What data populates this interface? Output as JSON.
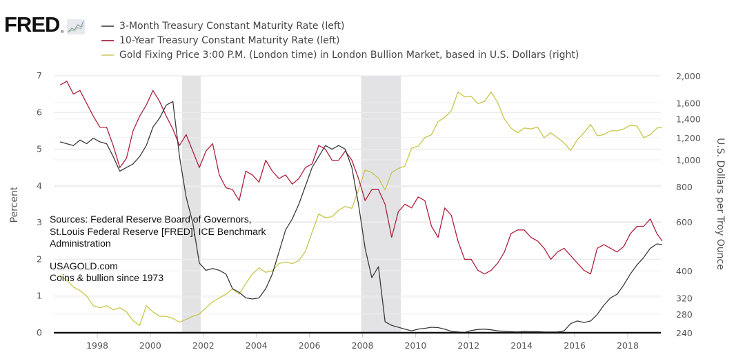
{
  "header": {
    "logo_text": "FRED",
    "logo_mark": "®",
    "logo_icon": "chart-line-icon"
  },
  "chart_data": {
    "type": "line",
    "title": "",
    "legend_position": "top-left",
    "legend": [
      {
        "name": "3-Month Treasury Constant Maturity Rate (left)",
        "color": "#444444"
      },
      {
        "name": "10-Year Treasury Constant Maturity Rate (left)",
        "color": "#b0203c"
      },
      {
        "name": "Gold Fixing Price 3:00 P.M. (London time) in London Bullion Market, based in U.S. Dollars (right)",
        "color": "#c8c44a"
      }
    ],
    "xlabel": "",
    "x_ticks": [
      "1998",
      "2000",
      "2002",
      "2004",
      "2006",
      "2008",
      "2010",
      "2012",
      "2014",
      "2016",
      "2018"
    ],
    "x_range": [
      1996.6,
      2019.3
    ],
    "y_left": {
      "label": "Percent",
      "range": [
        0,
        7
      ],
      "ticks": [
        "0",
        "1",
        "2",
        "3",
        "4",
        "5",
        "6",
        "7"
      ]
    },
    "y_right": {
      "label": "U.S. Dollars per Troy Ounce",
      "scale": "log",
      "range": [
        240,
        2000
      ],
      "ticks": [
        "240",
        "280",
        "320",
        "400",
        "600",
        "800",
        "1,000",
        "1,200",
        "1,400",
        "1,600",
        "2,000"
      ],
      "tick_values": [
        240,
        280,
        320,
        400,
        600,
        800,
        1000,
        1200,
        1400,
        1600,
        2000
      ]
    },
    "grid": true,
    "recessions": [
      [
        2001.2,
        2001.9
      ],
      [
        2007.95,
        2009.45
      ]
    ],
    "x": [
      1996.6,
      1996.85,
      1997.1,
      1997.35,
      1997.6,
      1997.85,
      1998.1,
      1998.35,
      1998.6,
      1998.85,
      1999.1,
      1999.35,
      1999.6,
      1999.85,
      2000.1,
      2000.35,
      2000.6,
      2000.85,
      2001.1,
      2001.35,
      2001.6,
      2001.85,
      2002.1,
      2002.35,
      2002.6,
      2002.85,
      2003.1,
      2003.35,
      2003.6,
      2003.85,
      2004.1,
      2004.35,
      2004.6,
      2004.85,
      2005.1,
      2005.35,
      2005.6,
      2005.85,
      2006.1,
      2006.35,
      2006.6,
      2006.85,
      2007.1,
      2007.35,
      2007.6,
      2007.85,
      2008.1,
      2008.35,
      2008.6,
      2008.85,
      2009.1,
      2009.35,
      2009.6,
      2009.85,
      2010.1,
      2010.35,
      2010.6,
      2010.85,
      2011.1,
      2011.35,
      2011.6,
      2011.85,
      2012.1,
      2012.35,
      2012.6,
      2012.85,
      2013.1,
      2013.35,
      2013.6,
      2013.85,
      2014.1,
      2014.35,
      2014.6,
      2014.85,
      2015.1,
      2015.35,
      2015.6,
      2015.85,
      2016.1,
      2016.35,
      2016.6,
      2016.85,
      2017.1,
      2017.35,
      2017.6,
      2017.85,
      2018.1,
      2018.35,
      2018.6,
      2018.85,
      2019.1,
      2019.3
    ],
    "series": [
      {
        "name": "3-Month Treasury Constant Maturity Rate (left)",
        "axis": "left",
        "values": [
          5.2,
          5.15,
          5.1,
          5.25,
          5.15,
          5.3,
          5.2,
          5.15,
          4.8,
          4.4,
          4.5,
          4.6,
          4.8,
          5.1,
          5.6,
          5.85,
          6.2,
          6.3,
          4.8,
          3.7,
          3.0,
          1.9,
          1.7,
          1.75,
          1.7,
          1.6,
          1.2,
          1.1,
          0.95,
          0.92,
          0.95,
          1.2,
          1.6,
          2.2,
          2.8,
          3.1,
          3.5,
          4.0,
          4.5,
          4.8,
          5.1,
          5.0,
          5.1,
          5.0,
          4.5,
          3.5,
          2.3,
          1.5,
          1.8,
          0.3,
          0.2,
          0.15,
          0.1,
          0.05,
          0.1,
          0.12,
          0.15,
          0.14,
          0.1,
          0.04,
          0.02,
          0.01,
          0.06,
          0.09,
          0.1,
          0.08,
          0.05,
          0.04,
          0.03,
          0.02,
          0.04,
          0.03,
          0.03,
          0.02,
          0.02,
          0.02,
          0.05,
          0.25,
          0.32,
          0.28,
          0.32,
          0.5,
          0.75,
          0.95,
          1.05,
          1.3,
          1.6,
          1.85,
          2.05,
          2.3,
          2.42,
          2.4
        ]
      },
      {
        "name": "10-Year Treasury Constant Maturity Rate (left)",
        "axis": "left",
        "values": [
          6.75,
          6.85,
          6.5,
          6.6,
          6.25,
          5.9,
          5.6,
          5.6,
          5.1,
          4.5,
          4.75,
          5.5,
          5.9,
          6.2,
          6.6,
          6.3,
          5.9,
          5.55,
          5.1,
          5.4,
          4.95,
          4.5,
          4.95,
          5.15,
          4.3,
          3.95,
          3.9,
          3.6,
          4.4,
          4.3,
          4.1,
          4.7,
          4.4,
          4.2,
          4.3,
          4.05,
          4.2,
          4.5,
          4.6,
          5.1,
          5.0,
          4.7,
          4.7,
          4.95,
          4.7,
          4.2,
          3.6,
          3.9,
          3.9,
          3.5,
          2.6,
          3.3,
          3.5,
          3.4,
          3.7,
          3.6,
          2.9,
          2.6,
          3.4,
          3.2,
          2.5,
          2.0,
          2.0,
          1.7,
          1.6,
          1.7,
          1.9,
          2.2,
          2.7,
          2.8,
          2.8,
          2.6,
          2.5,
          2.3,
          2.0,
          2.2,
          2.3,
          2.1,
          1.9,
          1.7,
          1.6,
          2.3,
          2.4,
          2.3,
          2.2,
          2.35,
          2.7,
          2.9,
          2.9,
          3.1,
          2.7,
          2.5
        ]
      },
      {
        "name": "Gold Fixing Price 3:00 P.M. (London time) in London Bullion Market, based in U.S. Dollars (right)",
        "axis": "right",
        "values": [
          385,
          370,
          350,
          340,
          325,
          300,
          295,
          300,
          290,
          295,
          285,
          265,
          255,
          300,
          285,
          275,
          275,
          270,
          262,
          268,
          275,
          280,
          295,
          310,
          320,
          330,
          345,
          330,
          360,
          390,
          410,
          395,
          400,
          425,
          430,
          425,
          435,
          470,
          550,
          640,
          620,
          625,
          660,
          680,
          670,
          780,
          920,
          900,
          860,
          780,
          900,
          930,
          950,
          1100,
          1120,
          1200,
          1230,
          1370,
          1420,
          1500,
          1750,
          1680,
          1690,
          1590,
          1620,
          1750,
          1600,
          1400,
          1300,
          1250,
          1300,
          1290,
          1310,
          1200,
          1250,
          1200,
          1150,
          1080,
          1180,
          1250,
          1340,
          1220,
          1230,
          1270,
          1270,
          1290,
          1330,
          1320,
          1200,
          1230,
          1300,
          1310
        ]
      }
    ],
    "annotations": [
      "Sources: Federal Reserve Board of Governors,",
      "St.Louis Federal Reserve [FRED], ICE Benchmark",
      "Administration",
      "USAGOLD.com",
      "Coins & bullion since 1973"
    ]
  }
}
